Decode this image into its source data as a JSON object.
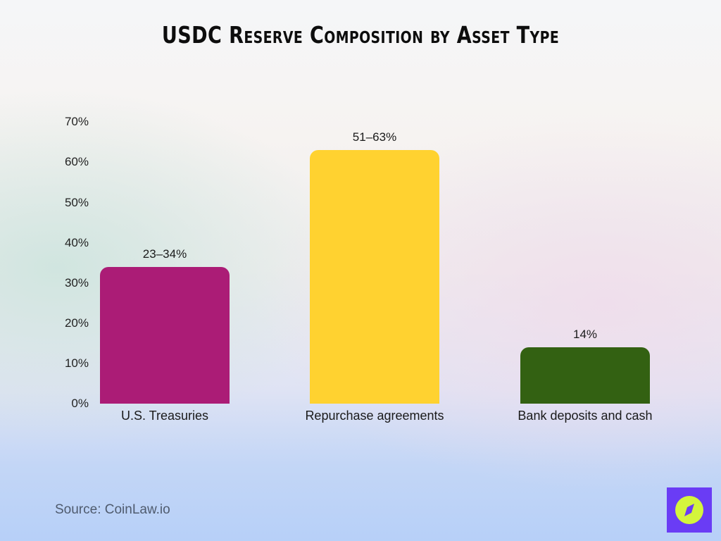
{
  "header": {
    "title": "USDC Reserve Composition by Asset Type"
  },
  "footer": {
    "source": "Source: CoinLaw.io",
    "logo_icon": "compass-icon"
  },
  "colors": {
    "treasuries": "#ab1c76",
    "repurchase": "#ffd230",
    "bank": "#336112",
    "logo_bg": "#6a3cf5",
    "logo_circle": "#d4f53c"
  },
  "chart_data": {
    "type": "bar",
    "title": "USDC Reserve Composition by Asset Type",
    "xlabel": "",
    "ylabel": "",
    "categories": [
      "U.S. Treasuries",
      "Repurchase agreements",
      "Bank deposits and cash"
    ],
    "values": [
      34,
      63,
      14
    ],
    "ranges": [
      [
        23,
        34
      ],
      [
        51,
        63
      ],
      [
        14,
        14
      ]
    ],
    "data_labels": [
      "23–34%",
      "51–63%",
      "14%"
    ],
    "ylim": [
      0,
      70
    ],
    "yticks": [
      "0%",
      "10%",
      "20%",
      "30%",
      "40%",
      "50%",
      "60%",
      "70%"
    ],
    "grid": false,
    "legend": "none",
    "source": "Source: CoinLaw.io"
  }
}
